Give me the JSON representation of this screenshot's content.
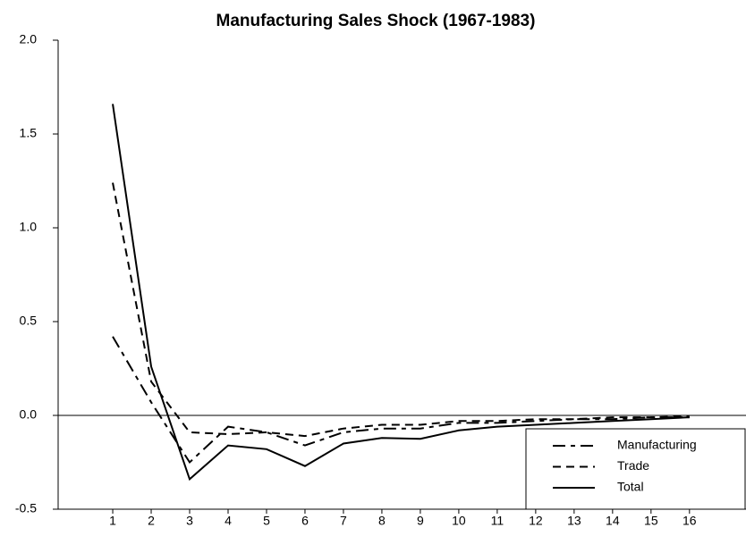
{
  "chart_data": {
    "type": "line",
    "title": "Manufacturing Sales Shock (1967-1983)",
    "x": [
      1,
      2,
      3,
      4,
      5,
      6,
      7,
      8,
      9,
      10,
      11,
      12,
      13,
      14,
      15,
      16
    ],
    "series": [
      {
        "name": "Manufacturing",
        "color": "#000000",
        "values": [
          0.42,
          0.07,
          -0.25,
          -0.06,
          -0.09,
          -0.16,
          -0.09,
          -0.07,
          -0.07,
          -0.04,
          -0.04,
          -0.03,
          -0.02,
          -0.02,
          -0.01,
          -0.01
        ]
      },
      {
        "name": "Trade",
        "color": "#000000",
        "values": [
          1.24,
          0.18,
          -0.09,
          -0.1,
          -0.09,
          -0.11,
          -0.07,
          -0.05,
          -0.05,
          -0.03,
          -0.03,
          -0.02,
          -0.02,
          -0.01,
          -0.01,
          -0.005
        ]
      },
      {
        "name": "Total",
        "color": "#000000",
        "values": [
          1.66,
          0.26,
          -0.34,
          -0.16,
          -0.18,
          -0.27,
          -0.15,
          -0.12,
          -0.125,
          -0.08,
          -0.06,
          -0.05,
          -0.04,
          -0.03,
          -0.02,
          -0.01
        ]
      }
    ],
    "xlim": [
      -0.42,
      17.47
    ],
    "xticks": [
      1,
      2,
      3,
      4,
      5,
      6,
      7,
      8,
      9,
      10,
      11,
      12,
      13,
      14,
      15,
      16
    ],
    "ylim": [
      -0.5,
      2.0
    ],
    "yticks": [
      {
        "value": -0.5,
        "label": "-0.5"
      },
      {
        "value": 0,
        "label": "0.0"
      },
      {
        "value": 0.5,
        "label": "0.5"
      },
      {
        "value": 1,
        "label": "1.0"
      },
      {
        "value": 1.5,
        "label": "1.5"
      },
      {
        "value": 2,
        "label": "2.0"
      }
    ],
    "legend": "lower right"
  }
}
